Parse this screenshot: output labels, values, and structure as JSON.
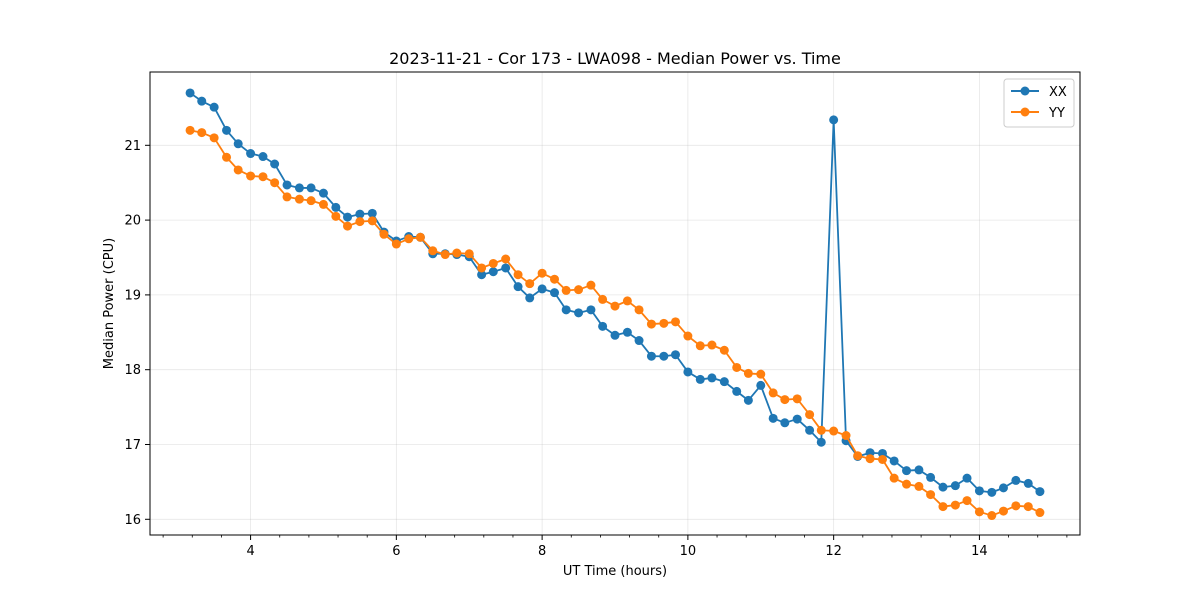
{
  "chart_data": {
    "type": "line",
    "title": "2023-11-21 - Cor 173 - LWA098 - Median Power vs. Time",
    "xlabel": "UT Time (hours)",
    "ylabel": "Median Power (CPU)",
    "xlim": [
      2.62,
      15.38
    ],
    "ylim": [
      15.79,
      21.98
    ],
    "xticks": [
      4,
      6,
      8,
      10,
      12,
      14
    ],
    "xtick_labels": [
      "4",
      "6",
      "8",
      "10",
      "12",
      "14"
    ],
    "yticks": [
      16,
      17,
      18,
      19,
      20,
      21
    ],
    "ytick_labels": [
      "16",
      "17",
      "18",
      "19",
      "20",
      "21"
    ],
    "grid": true,
    "legend_position": "top-right",
    "x": [
      3.17,
      3.33,
      3.5,
      3.67,
      3.83,
      4.0,
      4.17,
      4.33,
      4.5,
      4.67,
      4.83,
      5.0,
      5.17,
      5.33,
      5.5,
      5.67,
      5.83,
      6.0,
      6.17,
      6.33,
      6.5,
      6.67,
      6.83,
      7.0,
      7.17,
      7.33,
      7.5,
      7.67,
      7.83,
      8.0,
      8.17,
      8.33,
      8.5,
      8.67,
      8.83,
      9.0,
      9.17,
      9.33,
      9.5,
      9.67,
      9.83,
      10.0,
      10.17,
      10.33,
      10.5,
      10.67,
      10.83,
      11.0,
      11.17,
      11.33,
      11.5,
      11.67,
      11.83,
      12.0,
      12.17,
      12.33,
      12.5,
      12.67,
      12.83,
      13.0,
      13.17,
      13.33,
      13.5,
      13.67,
      13.83,
      14.0,
      14.17,
      14.33,
      14.5,
      14.67,
      14.83
    ],
    "series": [
      {
        "name": "XX",
        "color": "#1f77b4",
        "values": [
          21.7,
          21.59,
          21.51,
          21.2,
          21.02,
          20.89,
          20.85,
          20.75,
          20.47,
          20.43,
          20.43,
          20.36,
          20.17,
          20.04,
          20.08,
          20.09,
          19.84,
          19.72,
          19.78,
          19.77,
          19.55,
          19.55,
          19.54,
          19.51,
          19.27,
          19.31,
          19.36,
          19.11,
          18.96,
          19.08,
          19.03,
          18.8,
          18.76,
          18.8,
          18.58,
          18.46,
          18.5,
          18.39,
          18.18,
          18.18,
          18.2,
          17.97,
          17.87,
          17.89,
          17.84,
          17.71,
          17.59,
          17.79,
          17.35,
          17.29,
          17.34,
          17.19,
          17.03,
          21.34,
          17.05,
          16.84,
          16.89,
          16.88,
          16.78,
          16.65,
          16.66,
          16.56,
          16.43,
          16.45,
          16.55,
          16.38,
          16.36,
          16.42,
          16.52,
          16.48,
          16.37
        ]
      },
      {
        "name": "YY",
        "color": "#ff7f0e",
        "values": [
          21.2,
          21.17,
          21.1,
          20.84,
          20.67,
          20.59,
          20.58,
          20.5,
          20.31,
          20.28,
          20.26,
          20.21,
          20.05,
          19.92,
          19.98,
          19.99,
          19.81,
          19.68,
          19.75,
          19.77,
          19.59,
          19.54,
          19.56,
          19.55,
          19.36,
          19.42,
          19.48,
          19.27,
          19.15,
          19.29,
          19.21,
          19.06,
          19.07,
          19.13,
          18.94,
          18.85,
          18.92,
          18.8,
          18.61,
          18.62,
          18.64,
          18.45,
          18.32,
          18.33,
          18.26,
          18.03,
          17.95,
          17.94,
          17.69,
          17.6,
          17.61,
          17.4,
          17.19,
          17.18,
          17.12,
          16.85,
          16.81,
          16.8,
          16.55,
          16.47,
          16.44,
          16.33,
          16.17,
          16.19,
          16.25,
          16.1,
          16.05,
          16.11,
          16.18,
          16.17,
          16.09
        ]
      }
    ]
  }
}
